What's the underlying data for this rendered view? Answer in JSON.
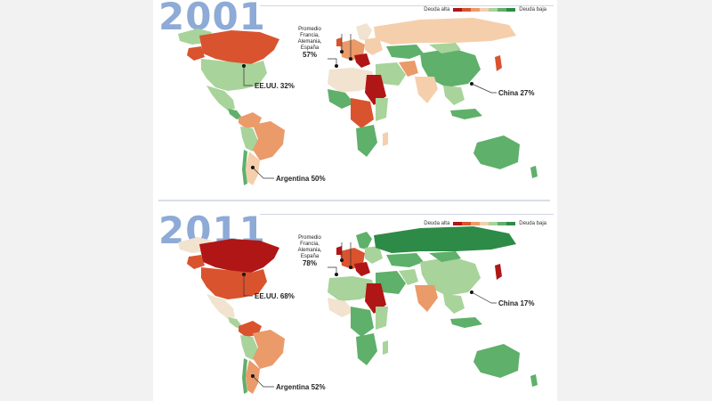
{
  "colors": {
    "high": "#b01616",
    "mid_high": "#d9532e",
    "mid": "#eb9a6a",
    "light": "#f5cfac",
    "neutral": "#f1e3cf",
    "low_light": "#a8d39a",
    "low": "#5fb06a",
    "lowest": "#2e8b47"
  },
  "legend": {
    "high_label": "Deuda alta",
    "low_label": "Deuda baja"
  },
  "panels": [
    {
      "year": "2001",
      "europe": {
        "line1": "Promedio",
        "line2": "Francia,",
        "line3": "Alemania,",
        "line4": "España",
        "value": "57%"
      },
      "usa": {
        "label": "EE.UU.",
        "value": "32%"
      },
      "china": {
        "label": "China",
        "value": "27%"
      },
      "argentina": {
        "label": "Argentina",
        "value": "50%"
      }
    },
    {
      "year": "2011",
      "europe": {
        "line1": "Promedio",
        "line2": "Francia,",
        "line3": "Alemania,",
        "line4": "España",
        "value": "78%"
      },
      "usa": {
        "label": "EE.UU.",
        "value": "68%"
      },
      "china": {
        "label": "China",
        "value": "17%"
      },
      "argentina": {
        "label": "Argentina",
        "value": "52%"
      }
    }
  ]
}
